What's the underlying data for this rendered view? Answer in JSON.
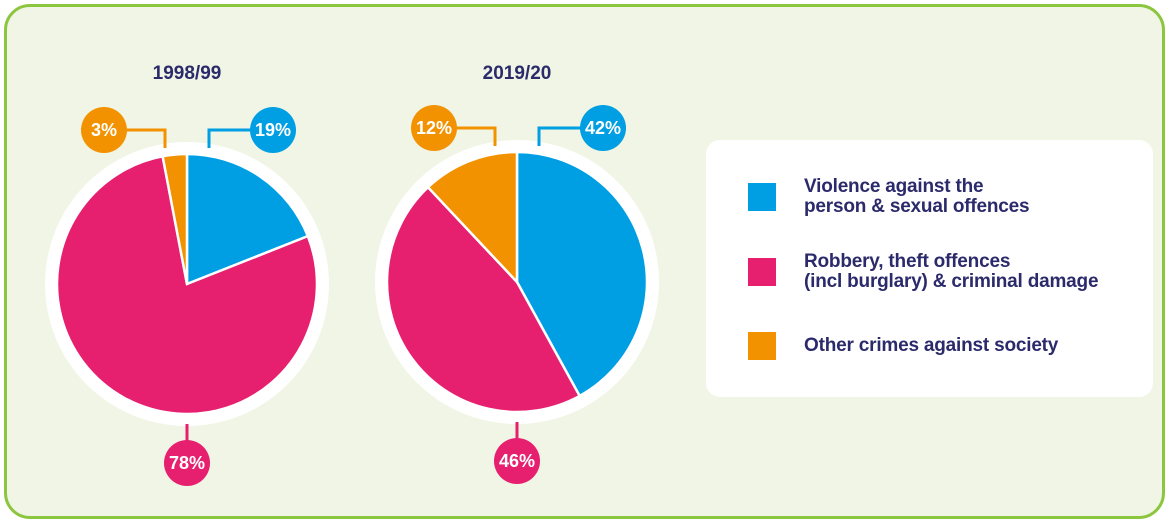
{
  "legend": {
    "categories": [
      "Violence against the\nperson & sexual offences",
      "Robbery, theft offences\n(incl burglary) & criminal damage",
      "Other crimes against society"
    ],
    "colors": [
      "#009fe3",
      "#e6206f",
      "#f39200"
    ]
  },
  "chart_data": [
    {
      "type": "pie",
      "title": "1998/99",
      "values": [
        19,
        78,
        3
      ],
      "value_labels": [
        "19%",
        "78%",
        "3%"
      ]
    },
    {
      "type": "pie",
      "title": "2019/20",
      "values": [
        42,
        46,
        12
      ],
      "value_labels": [
        "42%",
        "46%",
        "12%"
      ]
    }
  ]
}
